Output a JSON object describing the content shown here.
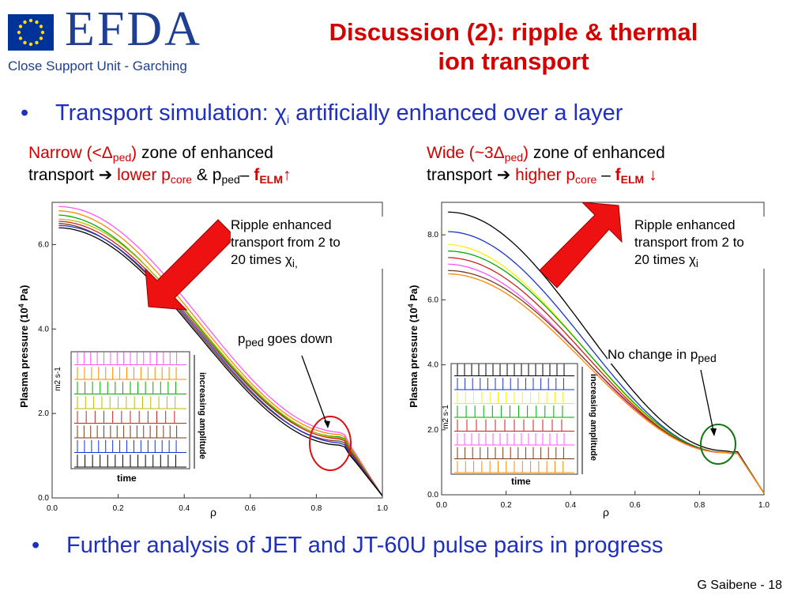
{
  "logo": {
    "wordmark": "EFDA",
    "subtitle": "Close Support Unit - Garching"
  },
  "title": {
    "line1": "Discussion (2): ripple  & thermal",
    "line2": "ion transport"
  },
  "bullet1": {
    "prefix": "Transport simulation: ",
    "chi": "χ",
    "chi_sub": "i",
    "suffix": " artificially enhanced over a layer"
  },
  "left_head": {
    "p1": "Narrow (<Δ",
    "p1_sub": "ped",
    "p1_end": ")",
    "p2": " zone of enhanced",
    "p3": "transport ➔ ",
    "p4": "lower p",
    "p4_sub": "core",
    "p5": " & p",
    "p5_sub": "ped",
    "p6": "– ",
    "p7": "f",
    "p7_sub": "ELM",
    "p8": "↑"
  },
  "right_head": {
    "p1": "Wide (~3Δ",
    "p1_sub": "ped",
    "p1_end": ")",
    "p2": " zone of enhanced",
    "p3": "transport ➔ ",
    "p4": "higher p",
    "p4_sub": "core",
    "p5": "  – ",
    "p6": "f",
    "p6_sub": "ELM",
    "p7": " ↓"
  },
  "left_plot": {
    "annot1_l1": "Ripple enhanced",
    "annot1_l2": "transport from 2 to",
    "annot1_l3": "20 times χ",
    "annot1_sub": "i,",
    "annot2": "p",
    "annot2_sub": "ped",
    "annot2_end": " goes down",
    "xlabel": "ρ",
    "ylabel": "Plasma pressure (10",
    "ylabel_sup": "4",
    "ylabel_end": " Pa)",
    "inset_ylabel": "m2 s-1",
    "inset_xlabel": "time",
    "inset_side": "increasing amplitude"
  },
  "right_plot": {
    "annot1_l1": "Ripple enhanced",
    "annot1_l2": "transport from 2 to",
    "annot1_l3": "20 times χ",
    "annot1_sub": "i",
    "annot2": "No change in p",
    "annot2_sub": "ped",
    "xlabel": "ρ",
    "ylabel": "Plasma pressure (10",
    "ylabel_sup": "4",
    "ylabel_end": " Pa)",
    "inset_ylabel": "m2 s-1",
    "inset_xlabel": "time",
    "inset_side": "increasing amplitude"
  },
  "bullet2": "Further analysis of JET and JT-60U pulse pairs in progress",
  "footer": "G Saibene  - 18",
  "chart_data": [
    {
      "type": "line",
      "xlim": [
        0.0,
        1.0
      ],
      "ylim": [
        0.0,
        7.0
      ],
      "x_ticks": [
        "0.0",
        "0.2",
        "0.4",
        "0.6",
        "0.8",
        "1.0"
      ],
      "y_ticks": [
        "0.0",
        "2.0",
        "4.0",
        "6.0"
      ],
      "x_tick_values": [
        0.0,
        0.2,
        0.4,
        0.6,
        0.8,
        1.0
      ],
      "y_tick_values": [
        0.0,
        2.0,
        4.0,
        6.0
      ],
      "colors": [
        "#ff55ff",
        "#ff8800",
        "#00aa00",
        "#bbbb00",
        "#cc2222",
        "#7a3b1a",
        "#1a33cc",
        "#000000"
      ],
      "core_values": [
        6.9,
        6.8,
        6.7,
        6.6,
        6.55,
        6.5,
        6.45,
        6.4
      ],
      "ped_values": [
        1.55,
        1.5,
        1.45,
        1.42,
        1.4,
        1.35,
        1.3,
        1.25
      ]
    },
    {
      "type": "line",
      "xlim": [
        0.0,
        1.0
      ],
      "ylim": [
        0.0,
        9.0
      ],
      "x_ticks": [
        "0.0",
        "0.2",
        "0.4",
        "0.6",
        "0.8",
        "1.0"
      ],
      "y_ticks": [
        "0.0",
        "2.0",
        "4.0",
        "6.0",
        "8.0"
      ],
      "x_tick_values": [
        0.0,
        0.2,
        0.4,
        0.6,
        0.8,
        1.0
      ],
      "y_tick_values": [
        0.0,
        2.0,
        4.0,
        6.0,
        8.0
      ],
      "colors": [
        "#000000",
        "#1a33cc",
        "#ffee00",
        "#00aa00",
        "#cc2222",
        "#ff55ff",
        "#7a3b1a",
        "#ff8800"
      ],
      "core_values": [
        8.7,
        8.1,
        7.7,
        7.5,
        7.3,
        7.1,
        6.9,
        6.8
      ],
      "ped_values": [
        1.35,
        1.3,
        1.3,
        1.3,
        1.3,
        1.3,
        1.3,
        1.3
      ]
    }
  ]
}
